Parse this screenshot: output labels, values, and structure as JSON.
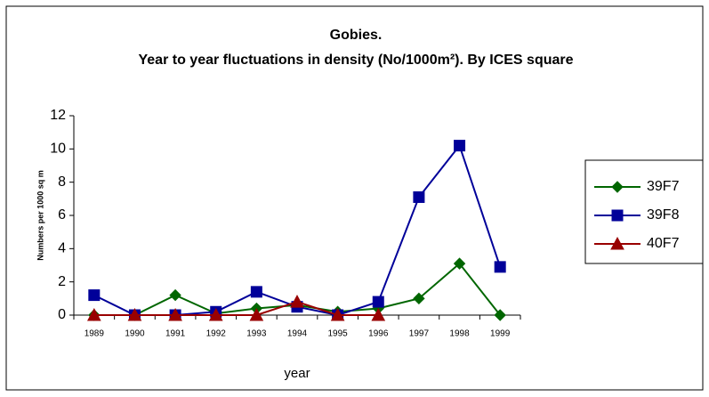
{
  "chart_data": {
    "type": "line",
    "title": [
      "Gobies.",
      "Year to year fluctuations in density (No/1000m²). By ICES square"
    ],
    "y_label": "Numbers per 1000 sq m",
    "x_label": "year",
    "categories": [
      "1989",
      "1990",
      "1991",
      "1992",
      "1993",
      "1994",
      "1995",
      "1996",
      "1997",
      "1998",
      "1999"
    ],
    "series": [
      {
        "name": "39F7",
        "color": "#006600",
        "marker": "diamond",
        "values": [
          0,
          0,
          1.2,
          0.1,
          0.4,
          0.6,
          0.2,
          0.4,
          1.0,
          3.1,
          0
        ]
      },
      {
        "name": "39F8",
        "color": "#000099",
        "marker": "square",
        "values": [
          1.2,
          0,
          0,
          0.2,
          1.4,
          0.5,
          0,
          0.8,
          7.1,
          10.2,
          2.9
        ]
      },
      {
        "name": "40F7",
        "color": "#990000",
        "marker": "triangle",
        "values": [
          0,
          0,
          0,
          0,
          0,
          0.8,
          0,
          0,
          null,
          null,
          null
        ]
      }
    ],
    "ylim": [
      0,
      12
    ],
    "yticks": [
      0,
      2,
      4,
      6,
      8,
      10,
      12
    ],
    "legend": "right"
  }
}
